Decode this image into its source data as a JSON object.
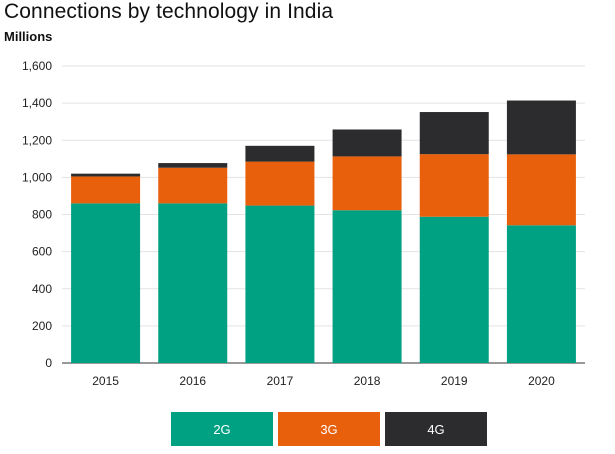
{
  "title": "Connections by technology in India",
  "unit_label": "Millions",
  "colors": {
    "2G": "#00a082",
    "3G": "#e8600c",
    "4G": "#2c2c2e",
    "grid": "#e3e3e3",
    "axis": "#333333"
  },
  "chart_data": {
    "type": "bar",
    "stacked": true,
    "title": "Connections by technology in India",
    "ylabel": "Millions",
    "categories": [
      "2015",
      "2016",
      "2017",
      "2018",
      "2019",
      "2020"
    ],
    "series": [
      {
        "name": "2G",
        "values": [
          860,
          860,
          848,
          823,
          788,
          742
        ]
      },
      {
        "name": "3G",
        "values": [
          145,
          192,
          237,
          290,
          337,
          382
        ]
      },
      {
        "name": "4G",
        "values": [
          15,
          25,
          85,
          145,
          227,
          290
        ]
      }
    ],
    "ylim": [
      0,
      1600
    ],
    "yticks": [
      "0",
      "200",
      "400",
      "600",
      "800",
      "1,000",
      "1,200",
      "1,400",
      "1,600"
    ],
    "ytick_values": [
      0,
      200,
      400,
      600,
      800,
      1000,
      1200,
      1400,
      1600
    ],
    "grid": true,
    "legend_position": "bottom"
  },
  "legend": {
    "items": [
      {
        "label": "2G"
      },
      {
        "label": "3G"
      },
      {
        "label": "4G"
      }
    ]
  }
}
